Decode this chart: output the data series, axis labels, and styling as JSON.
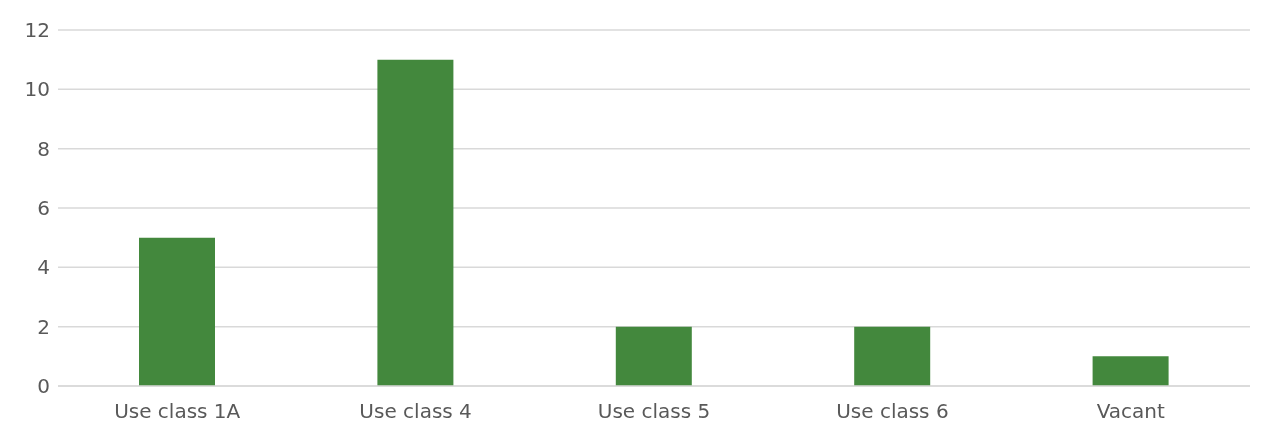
{
  "chart_data": {
    "type": "bar",
    "categories": [
      "Use class 1A",
      "Use class 4",
      "Use class 5",
      "Use class 6",
      "Vacant"
    ],
    "values": [
      5,
      11,
      2,
      2,
      1
    ],
    "color": "#43883d",
    "ylim": [
      0,
      12
    ],
    "yticks": [
      0,
      2,
      4,
      6,
      8,
      10,
      12
    ],
    "grid": "y"
  }
}
